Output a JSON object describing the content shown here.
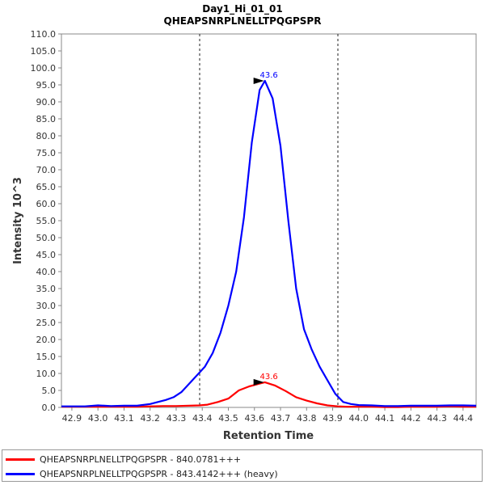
{
  "chart_data": {
    "type": "line",
    "title": "Day1_Hi_01_01",
    "subtitle": "QHEAPSNRPLNELLTPQGPSPR",
    "xlabel": "Retention Time",
    "ylabel": "Intensity 10^3",
    "xlim": [
      42.86,
      44.45
    ],
    "ylim": [
      0,
      110
    ],
    "x_ticks": [
      "42.9",
      "43.0",
      "43.1",
      "43.2",
      "43.3",
      "43.4",
      "43.5",
      "43.6",
      "43.7",
      "43.8",
      "43.9",
      "44.0",
      "44.1",
      "44.2",
      "44.3",
      "44.4"
    ],
    "y_ticks": [
      "0.0",
      "5.0",
      "10.0",
      "15.0",
      "20.0",
      "25.0",
      "30.0",
      "35.0",
      "40.0",
      "45.0",
      "50.0",
      "55.0",
      "60.0",
      "65.0",
      "70.0",
      "75.0",
      "80.0",
      "85.0",
      "90.0",
      "95.0",
      "100.0",
      "105.0",
      "110.0"
    ],
    "integration_bounds": [
      43.39,
      43.92
    ],
    "grid": false,
    "legend_position": "bottom",
    "series": [
      {
        "name": "QHEAPSNRPLNELLTPQGPSPR - 840.0781+++",
        "color": "#ff0000",
        "peak_label": "43.6",
        "peak": [
          43.64,
          7.4
        ],
        "x": [
          42.86,
          42.9,
          42.95,
          43.0,
          43.05,
          43.1,
          43.15,
          43.2,
          43.25,
          43.3,
          43.35,
          43.39,
          43.42,
          43.46,
          43.5,
          43.54,
          43.58,
          43.62,
          43.64,
          43.68,
          43.72,
          43.76,
          43.8,
          43.84,
          43.88,
          43.92,
          43.96,
          44.0,
          44.05,
          44.1,
          44.15,
          44.2,
          44.25,
          44.3,
          44.35,
          44.4,
          44.45
        ],
        "values": [
          0.2,
          0.2,
          0.2,
          0.2,
          0.2,
          0.2,
          0.2,
          0.3,
          0.4,
          0.4,
          0.5,
          0.6,
          0.8,
          1.6,
          2.6,
          5.0,
          6.2,
          7.0,
          7.4,
          6.4,
          4.8,
          3.0,
          2.0,
          1.2,
          0.6,
          0.3,
          0.2,
          0.2,
          0.2,
          0.1,
          0.1,
          0.2,
          0.2,
          0.2,
          0.3,
          0.2,
          0.2
        ]
      },
      {
        "name": "QHEAPSNRPLNELLTPQGPSPR - 843.4142+++ (heavy)",
        "color": "#0000ff",
        "peak_label": "43.6",
        "peak": [
          43.64,
          96.2
        ],
        "x": [
          42.86,
          42.9,
          42.95,
          43.0,
          43.05,
          43.1,
          43.15,
          43.2,
          43.23,
          43.26,
          43.29,
          43.32,
          43.35,
          43.38,
          43.41,
          43.44,
          43.47,
          43.5,
          43.53,
          43.56,
          43.59,
          43.62,
          43.64,
          43.67,
          43.7,
          43.73,
          43.76,
          43.79,
          43.82,
          43.85,
          43.88,
          43.91,
          43.94,
          43.97,
          44.0,
          44.05,
          44.1,
          44.15,
          44.2,
          44.25,
          44.3,
          44.35,
          44.4,
          44.45
        ],
        "values": [
          0.3,
          0.3,
          0.3,
          0.6,
          0.4,
          0.5,
          0.5,
          1.0,
          1.6,
          2.2,
          3.0,
          4.5,
          7.0,
          9.5,
          12.0,
          16.0,
          22.0,
          30.0,
          40.0,
          56.0,
          78.0,
          93.5,
          96.2,
          91.0,
          77.0,
          55.0,
          35.0,
          23.0,
          17.0,
          12.0,
          8.0,
          4.0,
          1.6,
          1.0,
          0.7,
          0.6,
          0.4,
          0.4,
          0.5,
          0.5,
          0.5,
          0.6,
          0.6,
          0.5
        ]
      }
    ]
  }
}
